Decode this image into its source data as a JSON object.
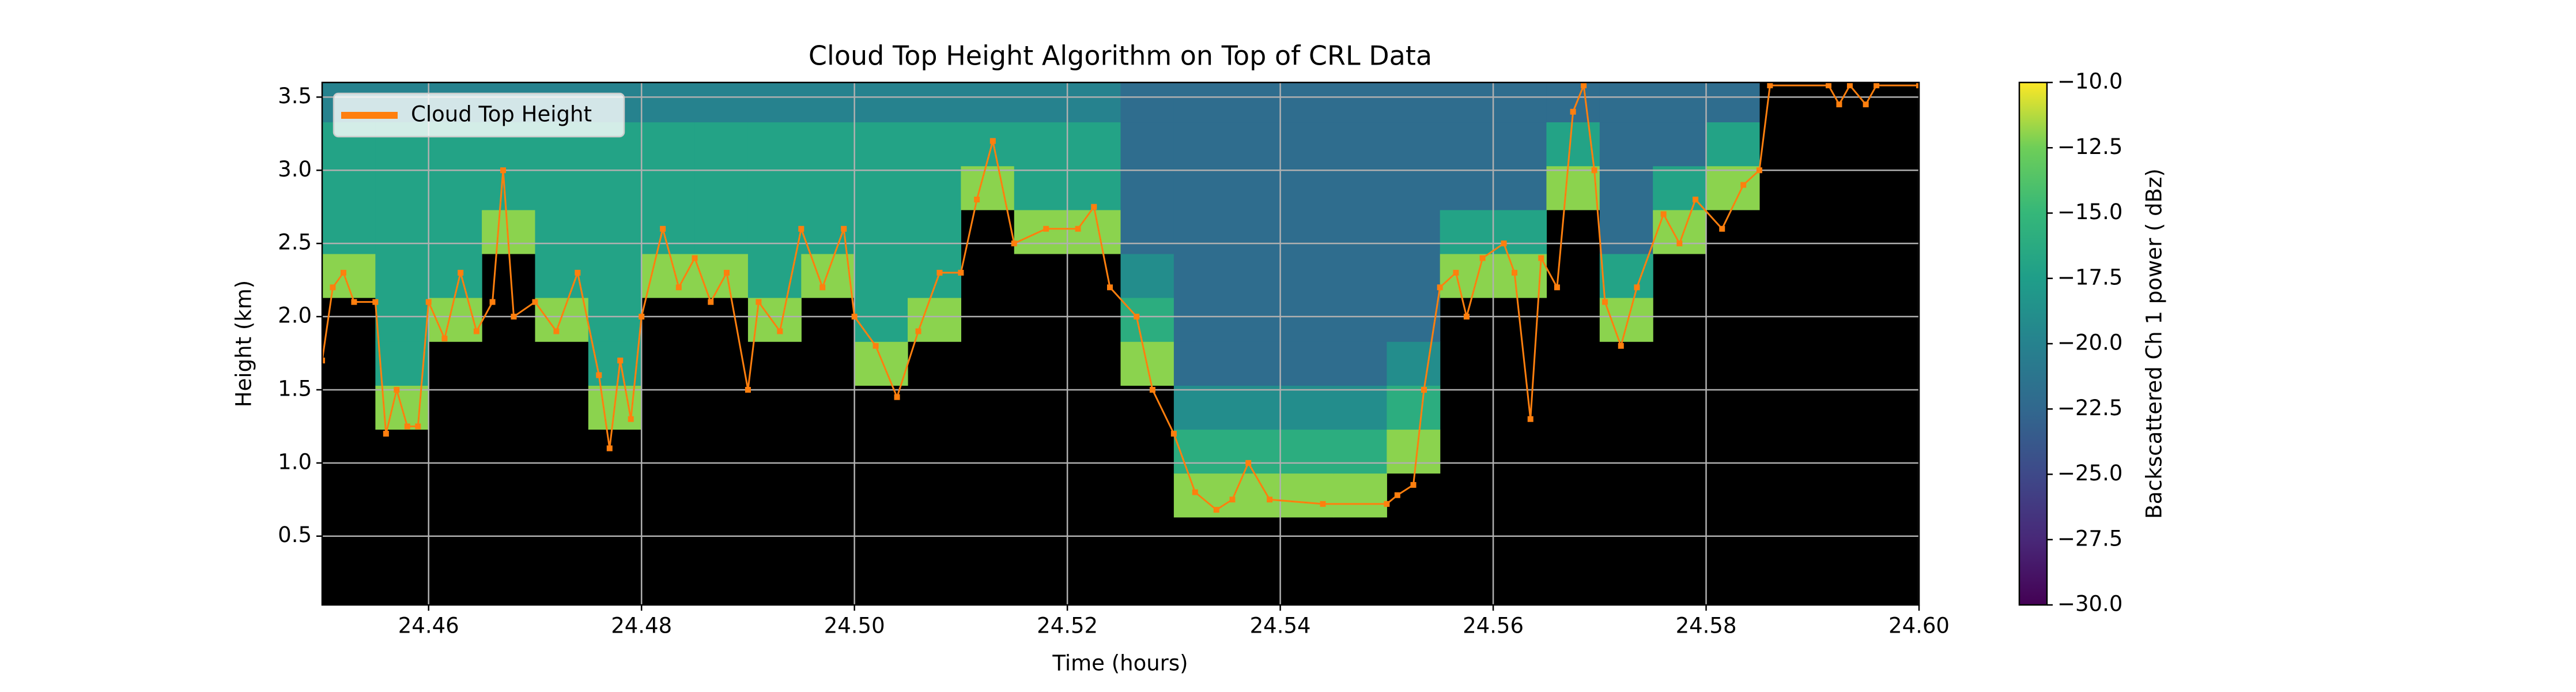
{
  "chart_data": {
    "type": "heatmap",
    "title": "Cloud Top Height Algorithm on Top of CRL Data",
    "x_label": "Time (hours)",
    "y_label": "Height (km)",
    "colorbar_label": "Backscattered Ch 1 power ( dBz)",
    "colormap": "viridis",
    "grid": true,
    "legend": "upper left",
    "xlim": [
      24.45,
      24.6
    ],
    "ylim": [
      0.03,
      3.6
    ],
    "clim": [
      -30,
      -10
    ],
    "xticks": [
      24.46,
      24.48,
      {
        "value": 24.5,
        "label": "24.50"
      },
      24.52,
      24.54,
      24.56,
      24.58,
      {
        "value": 24.6,
        "label": "24.60"
      }
    ],
    "yticks": [
      0.5,
      {
        "value": 1,
        "label": "1.0"
      },
      1.5,
      {
        "value": 2,
        "label": "2.0"
      },
      2.5,
      {
        "value": 3,
        "label": "3.0"
      },
      3.5
    ],
    "cticks": [
      {
        "value": -30,
        "label": "−30.0"
      },
      {
        "value": -27.5,
        "label": "−27.5"
      },
      {
        "value": -25,
        "label": "−25.0"
      },
      {
        "value": -22.5,
        "label": "−22.5"
      },
      {
        "value": -20,
        "label": "−20.0"
      },
      {
        "value": -17.5,
        "label": "−17.5"
      },
      {
        "value": -15,
        "label": "−15.0"
      },
      {
        "value": -12.5,
        "label": "−12.5"
      },
      {
        "value": -10,
        "label": "−10.0"
      }
    ],
    "x": [
      24.4525,
      24.4575,
      24.4625,
      24.4675,
      24.4725,
      24.4775,
      24.4825,
      24.4875,
      24.4925,
      24.4975,
      24.5025,
      24.5075,
      24.5125,
      24.5175,
      24.5225,
      24.5275,
      24.5325,
      24.5375,
      24.5425,
      24.5475,
      24.5525,
      24.5575,
      24.5625,
      24.5675,
      24.5725,
      24.5775,
      24.5825,
      24.5875,
      24.5925,
      24.5975
    ],
    "y": [
      0.18,
      0.48,
      0.78,
      1.08,
      1.38,
      1.68,
      1.98,
      2.28,
      2.58,
      2.88,
      3.18,
      3.48
    ],
    "z": [
      [
        null,
        null,
        null,
        null,
        null,
        null,
        null,
        null,
        null,
        null,
        null,
        null,
        null,
        null,
        null,
        null,
        null,
        null,
        null,
        null,
        null,
        null,
        null,
        null,
        null,
        null,
        null,
        null,
        null,
        null
      ],
      [
        null,
        null,
        null,
        null,
        null,
        null,
        null,
        null,
        null,
        null,
        null,
        null,
        null,
        null,
        null,
        null,
        null,
        null,
        null,
        null,
        null,
        null,
        null,
        null,
        null,
        null,
        null,
        null,
        null,
        null
      ],
      [
        null,
        null,
        null,
        null,
        null,
        null,
        null,
        null,
        null,
        null,
        null,
        null,
        null,
        null,
        null,
        null,
        -12,
        -12,
        -12,
        -12,
        null,
        null,
        null,
        null,
        null,
        null,
        null,
        null,
        null,
        null
      ],
      [
        null,
        null,
        null,
        null,
        null,
        null,
        null,
        null,
        null,
        null,
        null,
        null,
        null,
        null,
        null,
        null,
        -16,
        -16,
        -16,
        -16,
        -12,
        null,
        null,
        null,
        null,
        null,
        null,
        null,
        null,
        null
      ],
      [
        null,
        -12,
        null,
        null,
        null,
        -12,
        null,
        null,
        null,
        null,
        null,
        null,
        null,
        null,
        null,
        null,
        -19,
        -19,
        -19,
        -19,
        -16,
        null,
        null,
        null,
        null,
        null,
        null,
        null,
        null,
        null
      ],
      [
        null,
        -17,
        null,
        null,
        null,
        -17,
        null,
        null,
        null,
        null,
        -12,
        null,
        null,
        null,
        null,
        -12,
        -22,
        -22,
        -22,
        -22,
        -19,
        null,
        null,
        null,
        null,
        null,
        null,
        null,
        null,
        null
      ],
      [
        null,
        -17,
        -12,
        null,
        -12,
        -17,
        null,
        null,
        -12,
        null,
        -17,
        -12,
        null,
        null,
        null,
        -16,
        -22,
        -22,
        -22,
        -22,
        -22,
        null,
        null,
        null,
        -12,
        null,
        null,
        null,
        null,
        null
      ],
      [
        -12,
        -17,
        -17,
        null,
        -17,
        -17,
        -12,
        -12,
        -17,
        -12,
        -17,
        -17,
        null,
        null,
        null,
        -19,
        -22,
        -22,
        -22,
        -22,
        -22,
        -12,
        -12,
        null,
        -17,
        null,
        null,
        null,
        null,
        null
      ],
      [
        -17,
        -17,
        -17,
        -12,
        -17,
        -17,
        -17,
        -17,
        -17,
        -17,
        -17,
        -17,
        null,
        -12,
        -12,
        -22,
        -22,
        -22,
        -22,
        -22,
        -22,
        -17,
        -17,
        null,
        -22,
        -12,
        null,
        null,
        null,
        null
      ],
      [
        -17,
        -17,
        -17,
        -17,
        -17,
        -17,
        -17,
        -17,
        -17,
        -17,
        -17,
        -17,
        -12,
        -17,
        -17,
        -22,
        -22,
        -22,
        -22,
        -22,
        -22,
        -22,
        -22,
        -12,
        -22,
        -17,
        -12,
        null,
        null,
        null
      ],
      [
        -17,
        -17,
        -17,
        -17,
        -17,
        -17,
        -17,
        -17,
        -17,
        -17,
        -17,
        -17,
        -17,
        -17,
        -17,
        -22,
        -22,
        -22,
        -22,
        -22,
        -22,
        -22,
        -22,
        -17,
        -22,
        -22,
        -17,
        null,
        null,
        null
      ],
      [
        -20,
        -20,
        -20,
        -20,
        -20,
        -20,
        -20,
        -20,
        -20,
        -20,
        -20,
        -20,
        -20,
        -20,
        -20,
        -22,
        -22,
        -22,
        -22,
        -22,
        -22,
        -22,
        -22,
        -22,
        -22,
        -22,
        -22,
        null,
        null,
        null
      ]
    ],
    "series": [
      {
        "name": "Cloud Top Height",
        "type": "line",
        "color": "#ff7f0e",
        "x": [
          24.45,
          24.451,
          24.452,
          24.453,
          24.455,
          24.456,
          24.457,
          24.458,
          24.459,
          24.46,
          24.4615,
          24.463,
          24.4645,
          24.466,
          24.467,
          24.468,
          24.47,
          24.472,
          24.474,
          24.476,
          24.477,
          24.478,
          24.479,
          24.48,
          24.482,
          24.4835,
          24.485,
          24.4865,
          24.488,
          24.49,
          24.491,
          24.493,
          24.495,
          24.497,
          24.499,
          24.5,
          24.502,
          24.504,
          24.506,
          24.508,
          24.51,
          24.5115,
          24.513,
          24.515,
          24.518,
          24.521,
          24.5225,
          24.524,
          24.5265,
          24.528,
          24.53,
          24.532,
          24.534,
          24.5355,
          24.537,
          24.539,
          24.544,
          24.55,
          24.551,
          24.5525,
          24.5535,
          24.555,
          24.5565,
          24.5575,
          24.559,
          24.561,
          24.562,
          24.5635,
          24.5645,
          24.566,
          24.5675,
          24.5685,
          24.5695,
          24.5705,
          24.572,
          24.5735,
          24.576,
          24.5775,
          24.579,
          24.5815,
          24.5835,
          24.585,
          24.586,
          24.5915,
          24.5925,
          24.5935,
          24.595,
          24.596,
          24.6
        ],
        "values": [
          1.7,
          2.2,
          2.3,
          2.1,
          2.1,
          1.2,
          1.5,
          1.25,
          1.25,
          2.1,
          1.85,
          2.3,
          1.9,
          2.1,
          3.0,
          2.0,
          2.1,
          1.9,
          2.3,
          1.6,
          1.1,
          1.7,
          1.3,
          2.0,
          2.6,
          2.2,
          2.4,
          2.1,
          2.3,
          1.5,
          2.1,
          1.9,
          2.6,
          2.2,
          2.6,
          2.0,
          1.8,
          1.45,
          1.9,
          2.3,
          2.3,
          2.8,
          3.2,
          2.5,
          2.6,
          2.6,
          2.75,
          2.2,
          2.0,
          1.5,
          1.2,
          0.8,
          0.68,
          0.75,
          1.0,
          0.75,
          0.72,
          0.72,
          0.78,
          0.85,
          1.5,
          2.2,
          2.3,
          2.0,
          2.4,
          2.5,
          2.3,
          1.3,
          2.4,
          2.2,
          3.4,
          3.58,
          3.0,
          2.1,
          1.8,
          2.2,
          2.7,
          2.5,
          2.8,
          2.6,
          2.9,
          3.0,
          3.58,
          3.58,
          3.45,
          3.58,
          3.45,
          3.58,
          3.58
        ]
      }
    ]
  }
}
